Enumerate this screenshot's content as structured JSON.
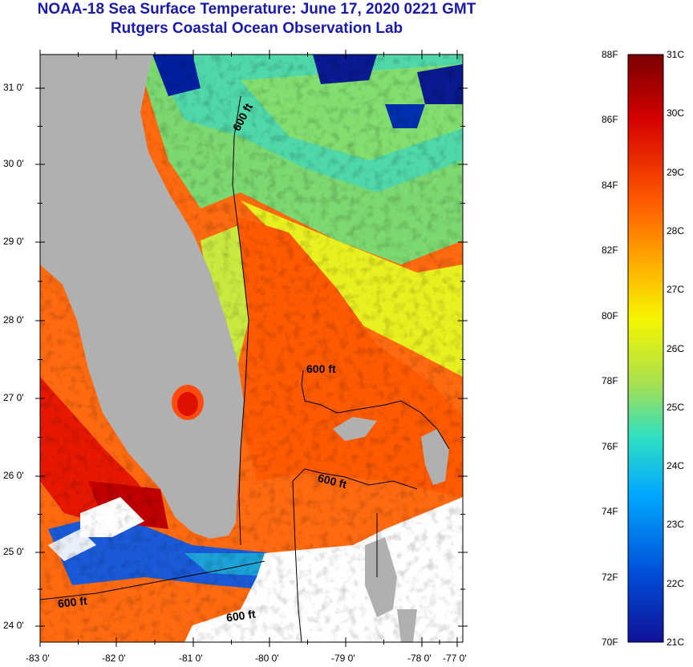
{
  "title": {
    "line1": "NOAA-18 Sea Surface Temperature:  June 17, 2020 0221 GMT",
    "line2": "Rutgers Coastal Ocean Observation Lab"
  },
  "map": {
    "lat_ticks": [
      "31 0'",
      "30 0'",
      "29 0'",
      "28 0'",
      "27 0'",
      "26 0'",
      "25 0'",
      "24 0'"
    ],
    "lon_ticks": [
      "-83 0'",
      "-82 0'",
      "-81 0'",
      "-80 0'",
      "-79 0'",
      "-78 0'",
      "-77 0'"
    ],
    "lat_range": [
      23.85,
      31.45
    ],
    "lon_range": [
      -83.0,
      -76.85
    ],
    "contour_labels": [
      "600 ft",
      "600 ft",
      "600 ft",
      "600 ft",
      "600 ft"
    ],
    "colors": {
      "land": "#b0b0b0",
      "cloud": "#ffffff",
      "contour": "#000000"
    }
  },
  "colorbar": {
    "fahrenheit": [
      "88F",
      "86F",
      "84F",
      "82F",
      "80F",
      "78F",
      "76F",
      "74F",
      "72F",
      "70F"
    ],
    "celsius": [
      "31C",
      "30C",
      "29C",
      "28C",
      "27C",
      "26C",
      "25C",
      "24C",
      "23C",
      "22C",
      "21C"
    ],
    "range_c": [
      21,
      31
    ],
    "stops": [
      "#7a0000",
      "#d40000",
      "#ff5a00",
      "#ffb000",
      "#f5f500",
      "#a8e050",
      "#30e0c0",
      "#00a8ff",
      "#0050d8",
      "#10109a"
    ]
  }
}
